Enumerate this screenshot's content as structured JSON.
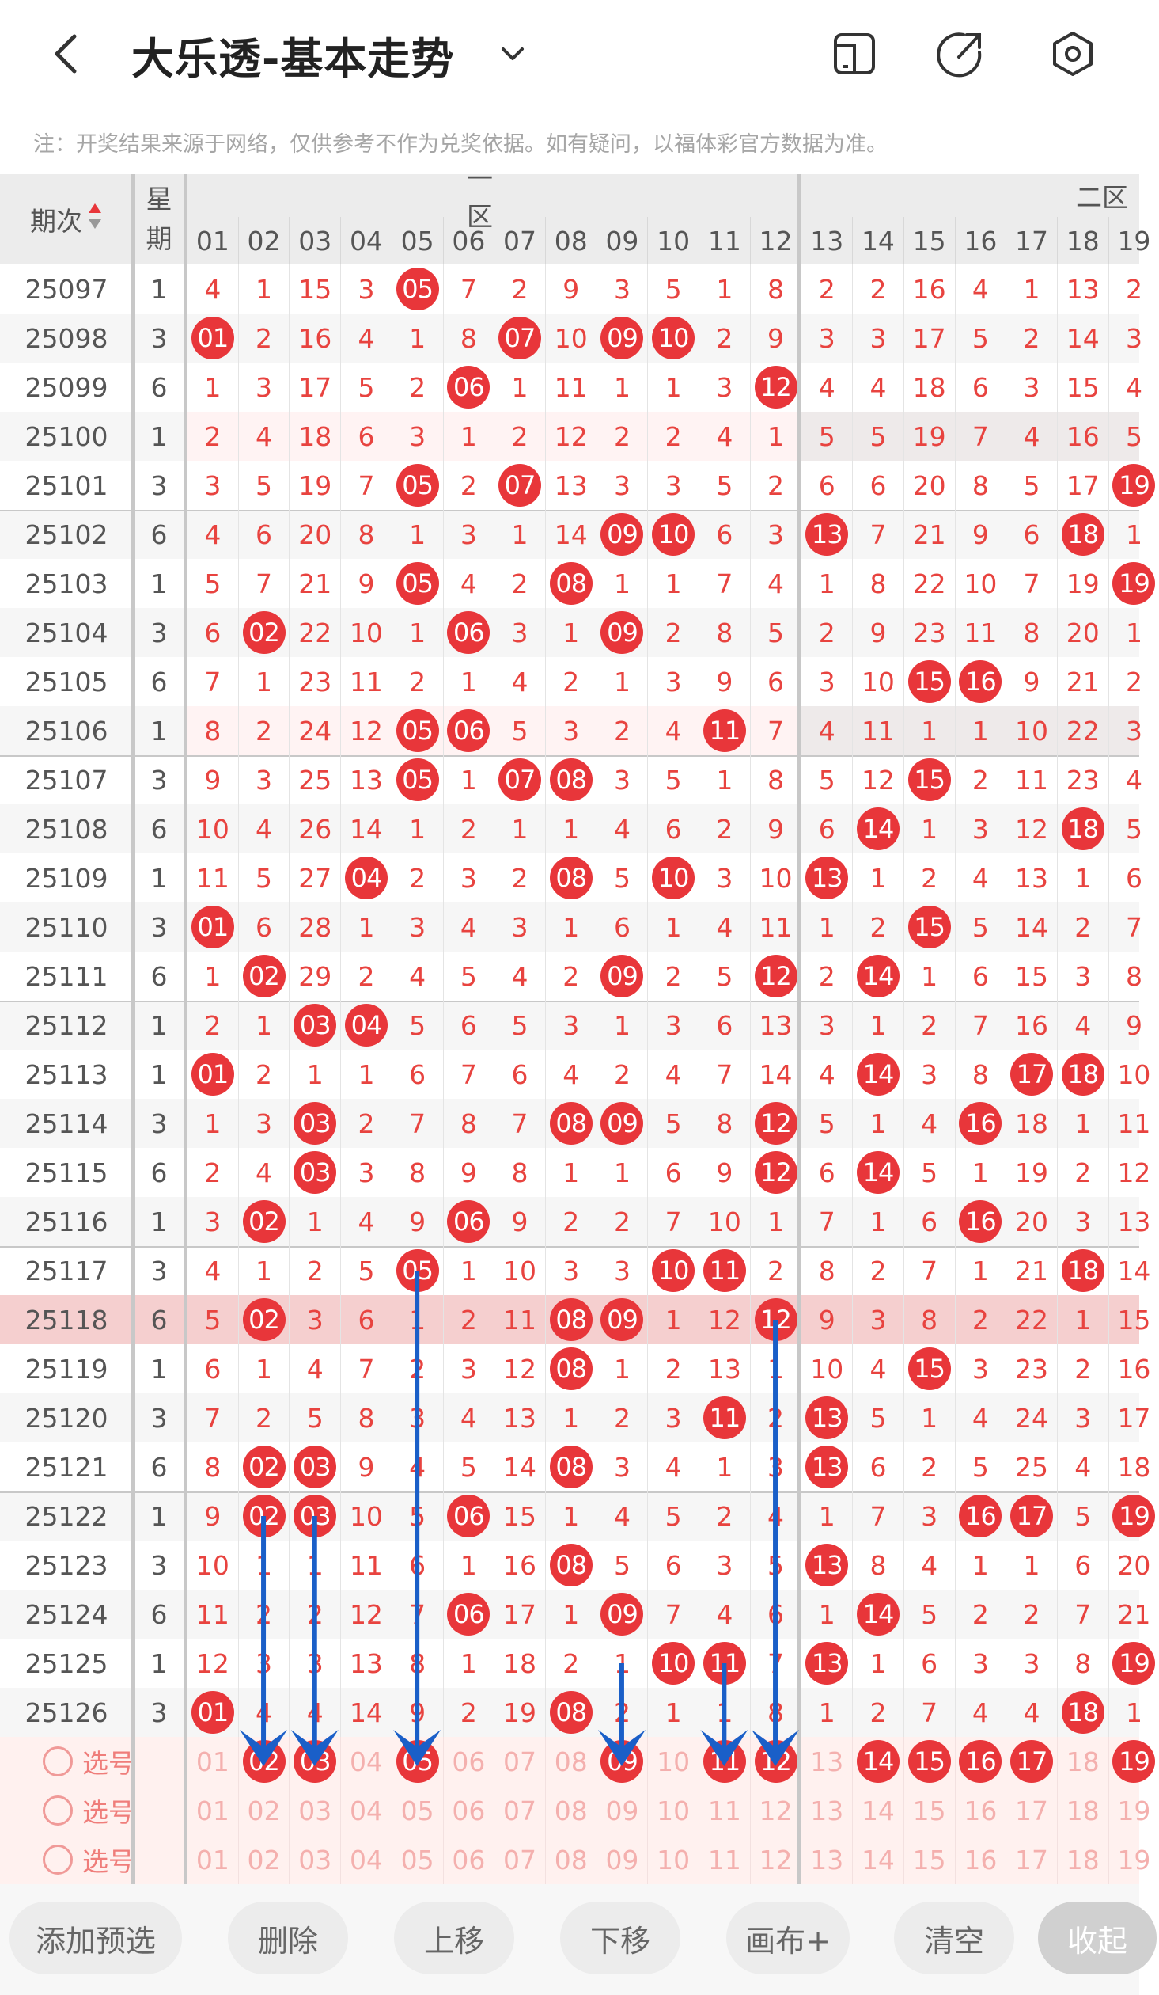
{
  "header": {
    "title": "大乐透-基本走势",
    "back_icon": "back-arrow-icon",
    "dropdown_icon": "chevron-down-icon",
    "actions": [
      "phone-rotate-icon",
      "share-icon",
      "settings-hexagon-icon"
    ]
  },
  "notice": "注：开奖结果来源于网络，仅供参考不作为兑奖依据。如有疑问，以福体彩官方数据为准。",
  "table": {
    "col_issue": "期次",
    "col_weekday": [
      "星",
      "期"
    ],
    "zone1_label": "一区",
    "zone2_label": "二区",
    "numbers": [
      "01",
      "02",
      "03",
      "04",
      "05",
      "06",
      "07",
      "08",
      "09",
      "10",
      "11",
      "12",
      "13",
      "14",
      "15",
      "16",
      "17",
      "18",
      "19"
    ],
    "rows": [
      {
        "issue": "25097",
        "wd": "1",
        "v": [
          "4",
          "1",
          "15",
          "3",
          "05",
          "7",
          "2",
          "9",
          "3",
          "5",
          "1",
          "8",
          "2",
          "2",
          "16",
          "4",
          "1",
          "13",
          "2"
        ]
      },
      {
        "issue": "25098",
        "wd": "3",
        "v": [
          "01",
          "2",
          "16",
          "4",
          "1",
          "8",
          "07",
          "10",
          "09",
          "10",
          "2",
          "9",
          "3",
          "3",
          "17",
          "5",
          "2",
          "14",
          "3"
        ]
      },
      {
        "issue": "25099",
        "wd": "6",
        "v": [
          "1",
          "3",
          "17",
          "5",
          "2",
          "06",
          "1",
          "11",
          "1",
          "1",
          "3",
          "12",
          "4",
          "4",
          "18",
          "6",
          "3",
          "15",
          "4"
        ]
      },
      {
        "issue": "25100",
        "wd": "1",
        "v": [
          "2",
          "4",
          "18",
          "6",
          "3",
          "1",
          "2",
          "12",
          "2",
          "2",
          "4",
          "1",
          "5",
          "5",
          "19",
          "7",
          "4",
          "16",
          "5"
        ]
      },
      {
        "issue": "25101",
        "wd": "3",
        "v": [
          "3",
          "5",
          "19",
          "7",
          "05",
          "2",
          "07",
          "13",
          "3",
          "3",
          "5",
          "2",
          "6",
          "6",
          "20",
          "8",
          "5",
          "17",
          "19"
        ]
      },
      {
        "issue": "25102",
        "wd": "6",
        "v": [
          "4",
          "6",
          "20",
          "8",
          "1",
          "3",
          "1",
          "14",
          "09",
          "10",
          "6",
          "3",
          "13",
          "7",
          "21",
          "9",
          "6",
          "18",
          "1"
        ]
      },
      {
        "issue": "25103",
        "wd": "1",
        "v": [
          "5",
          "7",
          "21",
          "9",
          "05",
          "4",
          "2",
          "08",
          "1",
          "1",
          "7",
          "4",
          "1",
          "8",
          "22",
          "10",
          "7",
          "19",
          "19"
        ]
      },
      {
        "issue": "25104",
        "wd": "3",
        "v": [
          "6",
          "02",
          "22",
          "10",
          "1",
          "06",
          "3",
          "1",
          "09",
          "2",
          "8",
          "5",
          "2",
          "9",
          "23",
          "11",
          "8",
          "20",
          "1"
        ]
      },
      {
        "issue": "25105",
        "wd": "6",
        "v": [
          "7",
          "1",
          "23",
          "11",
          "2",
          "1",
          "4",
          "2",
          "1",
          "3",
          "9",
          "6",
          "3",
          "10",
          "15",
          "16",
          "9",
          "21",
          "2"
        ]
      },
      {
        "issue": "25106",
        "wd": "1",
        "v": [
          "8",
          "2",
          "24",
          "12",
          "05",
          "06",
          "5",
          "3",
          "2",
          "4",
          "11",
          "7",
          "4",
          "11",
          "1",
          "1",
          "10",
          "22",
          "3"
        ]
      },
      {
        "issue": "25107",
        "wd": "3",
        "v": [
          "9",
          "3",
          "25",
          "13",
          "05",
          "1",
          "07",
          "08",
          "3",
          "5",
          "1",
          "8",
          "5",
          "12",
          "15",
          "2",
          "11",
          "23",
          "4"
        ]
      },
      {
        "issue": "25108",
        "wd": "6",
        "v": [
          "10",
          "4",
          "26",
          "14",
          "1",
          "2",
          "1",
          "1",
          "4",
          "6",
          "2",
          "9",
          "6",
          "14",
          "1",
          "3",
          "12",
          "18",
          "5"
        ]
      },
      {
        "issue": "25109",
        "wd": "1",
        "v": [
          "11",
          "5",
          "27",
          "04",
          "2",
          "3",
          "2",
          "08",
          "5",
          "10",
          "3",
          "10",
          "13",
          "1",
          "2",
          "4",
          "13",
          "1",
          "6"
        ]
      },
      {
        "issue": "25110",
        "wd": "3",
        "v": [
          "01",
          "6",
          "28",
          "1",
          "3",
          "4",
          "3",
          "1",
          "6",
          "1",
          "4",
          "11",
          "1",
          "2",
          "15",
          "5",
          "14",
          "2",
          "7"
        ]
      },
      {
        "issue": "25111",
        "wd": "6",
        "v": [
          "1",
          "02",
          "29",
          "2",
          "4",
          "5",
          "4",
          "2",
          "09",
          "2",
          "5",
          "12",
          "2",
          "14",
          "1",
          "6",
          "15",
          "3",
          "8"
        ]
      },
      {
        "issue": "25112",
        "wd": "1",
        "v": [
          "2",
          "1",
          "03",
          "04",
          "5",
          "6",
          "5",
          "3",
          "1",
          "3",
          "6",
          "13",
          "3",
          "1",
          "2",
          "7",
          "16",
          "4",
          "9"
        ]
      },
      {
        "issue": "25113",
        "wd": "1",
        "v": [
          "01",
          "2",
          "1",
          "1",
          "6",
          "7",
          "6",
          "4",
          "2",
          "4",
          "7",
          "14",
          "4",
          "14",
          "3",
          "8",
          "17",
          "18",
          "10"
        ]
      },
      {
        "issue": "25114",
        "wd": "3",
        "v": [
          "1",
          "3",
          "03",
          "2",
          "7",
          "8",
          "7",
          "08",
          "09",
          "5",
          "8",
          "12",
          "5",
          "1",
          "4",
          "16",
          "18",
          "1",
          "11"
        ]
      },
      {
        "issue": "25115",
        "wd": "6",
        "v": [
          "2",
          "4",
          "03",
          "3",
          "8",
          "9",
          "8",
          "1",
          "1",
          "6",
          "9",
          "12",
          "6",
          "14",
          "5",
          "1",
          "19",
          "2",
          "12"
        ]
      },
      {
        "issue": "25116",
        "wd": "1",
        "v": [
          "3",
          "02",
          "1",
          "4",
          "9",
          "06",
          "9",
          "2",
          "2",
          "7",
          "10",
          "1",
          "7",
          "1",
          "6",
          "16",
          "20",
          "3",
          "13"
        ]
      },
      {
        "issue": "25117",
        "wd": "3",
        "v": [
          "4",
          "1",
          "2",
          "5",
          "05",
          "1",
          "10",
          "3",
          "3",
          "10",
          "11",
          "2",
          "8",
          "2",
          "7",
          "1",
          "21",
          "18",
          "14"
        ]
      },
      {
        "issue": "25118",
        "wd": "6",
        "v": [
          "5",
          "02",
          "3",
          "6",
          "1",
          "2",
          "11",
          "08",
          "09",
          "1",
          "12",
          "12",
          "9",
          "3",
          "8",
          "2",
          "22",
          "1",
          "15"
        ]
      },
      {
        "issue": "25119",
        "wd": "1",
        "v": [
          "6",
          "1",
          "4",
          "7",
          "2",
          "3",
          "12",
          "08",
          "1",
          "2",
          "13",
          "1",
          "10",
          "4",
          "15",
          "3",
          "23",
          "2",
          "16"
        ]
      },
      {
        "issue": "25120",
        "wd": "3",
        "v": [
          "7",
          "2",
          "5",
          "8",
          "3",
          "4",
          "13",
          "1",
          "2",
          "3",
          "11",
          "2",
          "13",
          "5",
          "1",
          "4",
          "24",
          "3",
          "17"
        ]
      },
      {
        "issue": "25121",
        "wd": "6",
        "v": [
          "8",
          "02",
          "03",
          "9",
          "4",
          "5",
          "14",
          "08",
          "3",
          "4",
          "1",
          "3",
          "13",
          "6",
          "2",
          "5",
          "25",
          "4",
          "18"
        ]
      },
      {
        "issue": "25122",
        "wd": "1",
        "v": [
          "9",
          "02",
          "03",
          "10",
          "5",
          "06",
          "15",
          "1",
          "4",
          "5",
          "2",
          "4",
          "1",
          "7",
          "3",
          "16",
          "17",
          "5",
          "19"
        ]
      },
      {
        "issue": "25123",
        "wd": "3",
        "v": [
          "10",
          "1",
          "1",
          "11",
          "6",
          "1",
          "16",
          "08",
          "5",
          "6",
          "3",
          "5",
          "13",
          "8",
          "4",
          "1",
          "1",
          "6",
          "20"
        ]
      },
      {
        "issue": "25124",
        "wd": "6",
        "v": [
          "11",
          "2",
          "2",
          "12",
          "7",
          "06",
          "17",
          "1",
          "09",
          "7",
          "4",
          "6",
          "1",
          "14",
          "5",
          "2",
          "2",
          "7",
          "21"
        ]
      },
      {
        "issue": "25125",
        "wd": "1",
        "v": [
          "12",
          "3",
          "3",
          "13",
          "8",
          "1",
          "18",
          "2",
          "1",
          "10",
          "11",
          "7",
          "13",
          "1",
          "6",
          "3",
          "3",
          "8",
          "19"
        ]
      },
      {
        "issue": "25126",
        "wd": "3",
        "v": [
          "01",
          "4",
          "4",
          "14",
          "9",
          "2",
          "19",
          "08",
          "2",
          "1",
          "1",
          "8",
          "1",
          "2",
          "7",
          "4",
          "4",
          "18",
          "1"
        ]
      }
    ],
    "pick_label": "选号",
    "pick_selected": [
      "02",
      "03",
      "05",
      "09",
      "11",
      "12",
      "14",
      "15",
      "16",
      "17",
      "19"
    ]
  },
  "bottom": {
    "buttons": [
      "添加预选",
      "删除",
      "上移",
      "下移",
      "画布+",
      "清空",
      "收起"
    ]
  },
  "colors": {
    "ball_red": "#e8363a",
    "number_red": "#e8433f",
    "arrow_blue": "#1a5fc8",
    "highlight_row": "#f7cdcd",
    "pick_bg": "#fff1ef"
  }
}
